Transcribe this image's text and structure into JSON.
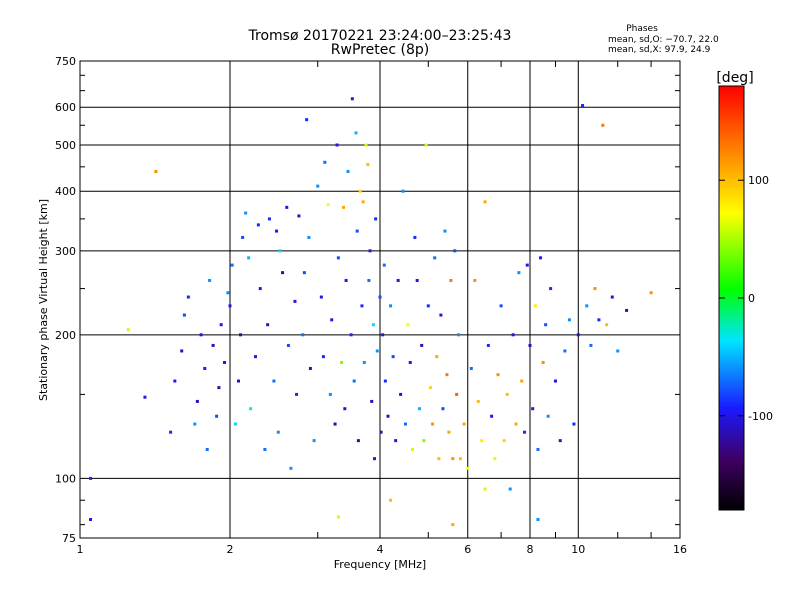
{
  "chart_data": {
    "type": "scatter",
    "title": "Tromsø 20170221 23:24:00–23:25:43",
    "subtitle": "RwPretec (8p)",
    "xlabel": "Frequency [MHz]",
    "ylabel": "Stationary phase Virtual Height [km]",
    "x_scale": "log",
    "y_scale": "log",
    "xlim": [
      1,
      16
    ],
    "ylim": [
      75,
      750
    ],
    "x_ticks": [
      1,
      2,
      4,
      6,
      8,
      10,
      16
    ],
    "y_ticks": [
      75,
      100,
      200,
      300,
      400,
      500,
      600,
      750
    ],
    "grid": true,
    "colorbar": {
      "label": "[deg]",
      "range": [
        -180,
        180
      ],
      "ticks": [
        100,
        0,
        -100
      ],
      "colormap": [
        "#000000",
        "#3f0066",
        "#1a1aff",
        "#00e5ff",
        "#00ff00",
        "#ffff00",
        "#ff8000",
        "#ff0000"
      ]
    },
    "annotations": {
      "phases_header": "Phases",
      "phase_o": "mean, sd,O: −70.7, 22.0",
      "phase_x": "mean, sd,X:  97.9, 24.9"
    },
    "points": [
      [
        1.05,
        82,
        -100
      ],
      [
        1.05,
        100,
        -90
      ],
      [
        1.25,
        205,
        60
      ],
      [
        1.35,
        148,
        -100
      ],
      [
        1.42,
        440,
        120
      ],
      [
        1.52,
        125,
        -90
      ],
      [
        1.55,
        160,
        -100
      ],
      [
        1.6,
        185,
        -110
      ],
      [
        1.62,
        220,
        -80
      ],
      [
        1.65,
        240,
        -90
      ],
      [
        1.7,
        130,
        -60
      ],
      [
        1.72,
        145,
        -110
      ],
      [
        1.75,
        200,
        -100
      ],
      [
        1.78,
        170,
        -95
      ],
      [
        1.8,
        115,
        -70
      ],
      [
        1.82,
        260,
        -60
      ],
      [
        1.85,
        190,
        -110
      ],
      [
        1.88,
        135,
        -80
      ],
      [
        1.9,
        155,
        -120
      ],
      [
        1.92,
        210,
        -95
      ],
      [
        1.95,
        175,
        -100
      ],
      [
        1.98,
        245,
        -60
      ],
      [
        2.0,
        230,
        -100
      ],
      [
        2.02,
        280,
        -70
      ],
      [
        2.05,
        130,
        -40
      ],
      [
        2.08,
        160,
        -110
      ],
      [
        2.1,
        200,
        -120
      ],
      [
        2.12,
        320,
        -80
      ],
      [
        2.15,
        360,
        -60
      ],
      [
        2.18,
        290,
        -50
      ],
      [
        2.2,
        140,
        -30
      ],
      [
        2.25,
        180,
        -100
      ],
      [
        2.28,
        340,
        -90
      ],
      [
        2.3,
        250,
        -100
      ],
      [
        2.35,
        115,
        -70
      ],
      [
        2.38,
        210,
        -110
      ],
      [
        2.4,
        350,
        -90
      ],
      [
        2.45,
        160,
        -70
      ],
      [
        2.48,
        330,
        -100
      ],
      [
        2.5,
        125,
        -60
      ],
      [
        2.52,
        300,
        -40
      ],
      [
        2.55,
        270,
        -120
      ],
      [
        2.6,
        370,
        -100
      ],
      [
        2.62,
        190,
        -80
      ],
      [
        2.65,
        105,
        -60
      ],
      [
        2.7,
        235,
        -100
      ],
      [
        2.72,
        150,
        -90
      ],
      [
        2.75,
        355,
        -110
      ],
      [
        2.8,
        200,
        -70
      ],
      [
        2.82,
        270,
        -80
      ],
      [
        2.85,
        565,
        -90
      ],
      [
        2.88,
        320,
        -60
      ],
      [
        2.9,
        170,
        -110
      ],
      [
        2.95,
        120,
        -60
      ],
      [
        3.0,
        410,
        -60
      ],
      [
        3.05,
        240,
        -100
      ],
      [
        3.08,
        180,
        -90
      ],
      [
        3.1,
        460,
        -70
      ],
      [
        3.15,
        375,
        70
      ],
      [
        3.18,
        150,
        -60
      ],
      [
        3.2,
        215,
        -100
      ],
      [
        3.25,
        130,
        -120
      ],
      [
        3.28,
        500,
        -100
      ],
      [
        3.3,
        290,
        -80
      ],
      [
        3.35,
        175,
        40
      ],
      [
        3.38,
        370,
        110
      ],
      [
        3.4,
        140,
        -110
      ],
      [
        3.42,
        260,
        -100
      ],
      [
        3.45,
        440,
        -60
      ],
      [
        3.5,
        200,
        -90
      ],
      [
        3.52,
        625,
        -100
      ],
      [
        3.55,
        160,
        -70
      ],
      [
        3.58,
        530,
        -50
      ],
      [
        3.6,
        330,
        -80
      ],
      [
        3.62,
        120,
        -120
      ],
      [
        3.65,
        400,
        90
      ],
      [
        3.68,
        230,
        -90
      ],
      [
        3.7,
        380,
        110
      ],
      [
        3.72,
        175,
        -60
      ],
      [
        3.75,
        500,
        60
      ],
      [
        3.78,
        455,
        100
      ],
      [
        3.8,
        260,
        -70
      ],
      [
        3.82,
        300,
        -100
      ],
      [
        3.85,
        145,
        -110
      ],
      [
        3.88,
        210,
        -40
      ],
      [
        3.9,
        110,
        -100
      ],
      [
        3.92,
        350,
        -90
      ],
      [
        3.95,
        185,
        -60
      ],
      [
        4.0,
        240,
        -80
      ],
      [
        4.02,
        125,
        -120
      ],
      [
        4.05,
        200,
        -100
      ],
      [
        4.08,
        280,
        -70
      ],
      [
        4.1,
        160,
        -90
      ],
      [
        4.15,
        135,
        -110
      ],
      [
        4.2,
        230,
        -60
      ],
      [
        4.25,
        180,
        -80
      ],
      [
        4.3,
        120,
        -100
      ],
      [
        4.35,
        260,
        -100
      ],
      [
        4.4,
        150,
        -110
      ],
      [
        4.45,
        400,
        -60
      ],
      [
        4.5,
        130,
        -70
      ],
      [
        4.55,
        210,
        70
      ],
      [
        4.6,
        175,
        -100
      ],
      [
        4.65,
        115,
        60
      ],
      [
        4.7,
        320,
        -90
      ],
      [
        4.75,
        260,
        -100
      ],
      [
        4.8,
        140,
        -50
      ],
      [
        4.85,
        190,
        -110
      ],
      [
        4.9,
        120,
        40
      ],
      [
        4.95,
        500,
        60
      ],
      [
        5.0,
        230,
        -90
      ],
      [
        5.05,
        155,
        90
      ],
      [
        5.1,
        130,
        120
      ],
      [
        5.15,
        290,
        -70
      ],
      [
        5.2,
        180,
        110
      ],
      [
        5.25,
        110,
        100
      ],
      [
        5.3,
        220,
        -100
      ],
      [
        5.35,
        140,
        -80
      ],
      [
        5.4,
        330,
        -60
      ],
      [
        5.45,
        165,
        130
      ],
      [
        5.5,
        125,
        110
      ],
      [
        5.55,
        260,
        130
      ],
      [
        5.6,
        110,
        120
      ],
      [
        5.65,
        300,
        -80
      ],
      [
        5.7,
        150,
        140
      ],
      [
        5.75,
        200,
        -60
      ],
      [
        5.8,
        110,
        100
      ],
      [
        5.9,
        130,
        110
      ],
      [
        6.0,
        105,
        70
      ],
      [
        6.1,
        170,
        -70
      ],
      [
        6.2,
        260,
        120
      ],
      [
        6.3,
        145,
        100
      ],
      [
        6.4,
        120,
        80
      ],
      [
        6.5,
        380,
        110
      ],
      [
        6.6,
        190,
        -90
      ],
      [
        6.7,
        135,
        -100
      ],
      [
        6.8,
        110,
        80
      ],
      [
        6.9,
        165,
        120
      ],
      [
        7.0,
        230,
        -80
      ],
      [
        7.1,
        120,
        90
      ],
      [
        7.2,
        150,
        100
      ],
      [
        7.3,
        95,
        -60
      ],
      [
        7.4,
        200,
        -100
      ],
      [
        7.5,
        130,
        110
      ],
      [
        7.6,
        270,
        -60
      ],
      [
        7.7,
        160,
        110
      ],
      [
        7.8,
        125,
        -90
      ],
      [
        7.9,
        280,
        -100
      ],
      [
        8.0,
        190,
        -110
      ],
      [
        8.1,
        140,
        -100
      ],
      [
        8.2,
        230,
        80
      ],
      [
        8.3,
        115,
        -70
      ],
      [
        8.4,
        290,
        -100
      ],
      [
        8.5,
        175,
        120
      ],
      [
        8.6,
        210,
        -80
      ],
      [
        8.7,
        135,
        -60
      ],
      [
        8.8,
        250,
        -90
      ],
      [
        9.0,
        160,
        -100
      ],
      [
        9.2,
        120,
        -110
      ],
      [
        9.4,
        185,
        -70
      ],
      [
        9.6,
        215,
        -60
      ],
      [
        9.8,
        130,
        -90
      ],
      [
        10.0,
        200,
        -100
      ],
      [
        10.2,
        605,
        -90
      ],
      [
        10.4,
        230,
        -60
      ],
      [
        10.6,
        190,
        -70
      ],
      [
        10.8,
        250,
        120
      ],
      [
        11.0,
        215,
        -90
      ],
      [
        11.2,
        550,
        130
      ],
      [
        11.4,
        210,
        100
      ],
      [
        11.7,
        240,
        -100
      ],
      [
        12.0,
        185,
        -60
      ],
      [
        12.5,
        225,
        -110
      ],
      [
        14.0,
        245,
        120
      ],
      [
        3.3,
        83,
        60
      ],
      [
        4.2,
        90,
        100
      ],
      [
        5.6,
        80,
        110
      ],
      [
        6.5,
        95,
        60
      ],
      [
        8.3,
        82,
        -60
      ]
    ]
  }
}
